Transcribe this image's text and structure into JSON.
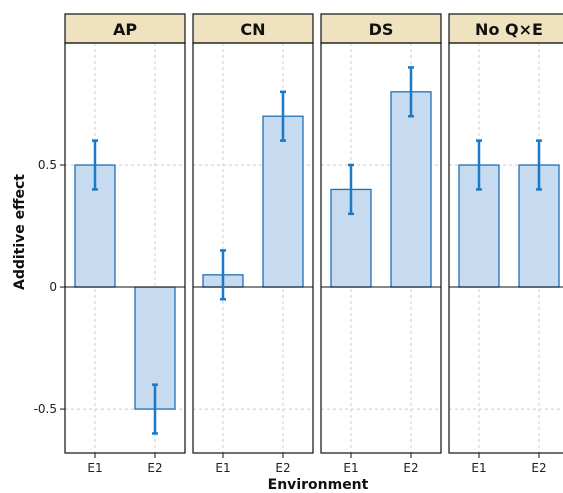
{
  "chart_data": {
    "type": "bar",
    "xlabel": "Environment",
    "ylabel": "Additive effect",
    "ylim": [
      -0.68,
      1.0
    ],
    "y_ticks": [
      {
        "value": -0.5,
        "label": "-0.5"
      },
      {
        "value": 0,
        "label": "0"
      },
      {
        "value": 0.5,
        "label": "0.5"
      }
    ],
    "grid": true,
    "error_bars": true,
    "colors": {
      "bar_fill": "#c6daf0",
      "bar_stroke": "#1f6fb5",
      "error_bar": "#1b79c6",
      "strip_fill": "#efe3bf",
      "grid": "#cccccc",
      "frame": "#111111"
    },
    "panels": [
      {
        "title": "AP",
        "categories": [
          "E1",
          "E2"
        ],
        "values": [
          0.5,
          -0.5
        ],
        "error_low": [
          0.4,
          -0.6
        ],
        "error_high": [
          0.6,
          -0.4
        ]
      },
      {
        "title": "CN",
        "categories": [
          "E1",
          "E2"
        ],
        "values": [
          0.05,
          0.7
        ],
        "error_low": [
          -0.05,
          0.6
        ],
        "error_high": [
          0.15,
          0.8
        ]
      },
      {
        "title": "DS",
        "categories": [
          "E1",
          "E2"
        ],
        "values": [
          0.4,
          0.8
        ],
        "error_low": [
          0.3,
          0.7
        ],
        "error_high": [
          0.5,
          0.9
        ]
      },
      {
        "title": "No Q×E",
        "categories": [
          "E1",
          "E2"
        ],
        "values": [
          0.5,
          0.5
        ],
        "error_low": [
          0.4,
          0.4
        ],
        "error_high": [
          0.6,
          0.6
        ]
      }
    ]
  }
}
